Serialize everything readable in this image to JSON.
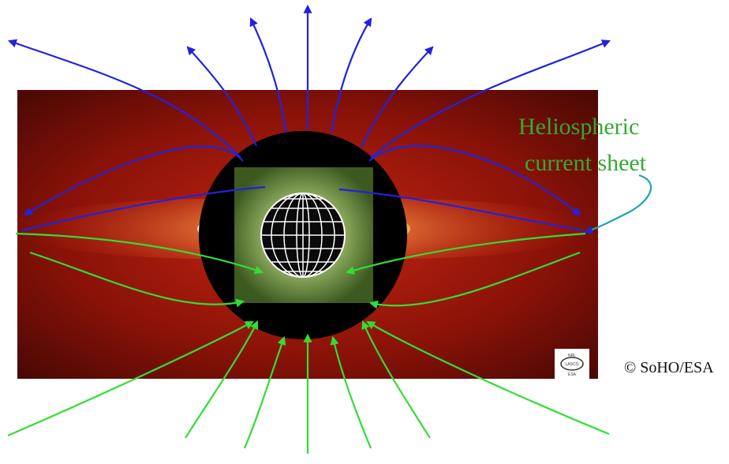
{
  "annotations": {
    "current_sheet_line1": "Heliospheric",
    "current_sheet_line2": "current sheet",
    "credit": "© SoHO/ESA"
  },
  "logo": {
    "top_text": "NRL",
    "center_text": "LASCO",
    "bottom_text": "ESA"
  },
  "colors": {
    "upper_field_lines": "#2222dd",
    "lower_field_lines": "#33dd33",
    "label_text": "#33aa33",
    "leader_line": "#1ea5b0",
    "corona_background": "#8a1208",
    "streamer": "#ffcc66",
    "occulter": "#000000",
    "eit_disk": "#6a8f3a",
    "sun_grid": "#ffffff"
  }
}
